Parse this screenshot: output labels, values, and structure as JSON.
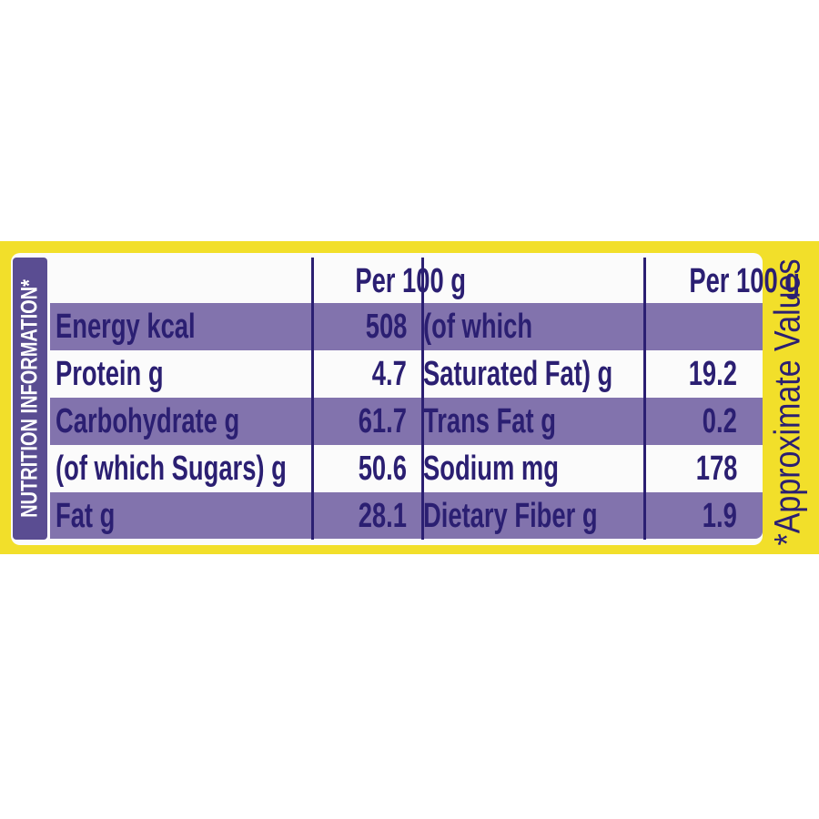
{
  "side_label": "NUTRITION INFORMATION*",
  "footnote": "*Approximate Values",
  "colors": {
    "band": "#f2df2a",
    "text": "#2b1f72",
    "row_shade": "#8273ad",
    "side_label_bg": "#5a4d92"
  },
  "table": {
    "headers": [
      "",
      "Per 100 g",
      "",
      "Per 100 g"
    ],
    "rows": [
      {
        "left_label": "Energy kcal",
        "left_value": "508",
        "right_label": "(of which",
        "right_value": ""
      },
      {
        "left_label": "Protein g",
        "left_value": "4.7",
        "right_label": "Saturated Fat) g",
        "right_value": "19.2"
      },
      {
        "left_label": "Carbohydrate g",
        "left_value": "61.7",
        "right_label": "Trans Fat g",
        "right_value": "0.2"
      },
      {
        "left_label": "(of which Sugars) g",
        "left_value": "50.6",
        "right_label": "Sodium mg",
        "right_value": "178"
      },
      {
        "left_label": "Fat g",
        "left_value": "28.1",
        "right_label": "Dietary Fiber g",
        "right_value": "1.9"
      }
    ]
  }
}
